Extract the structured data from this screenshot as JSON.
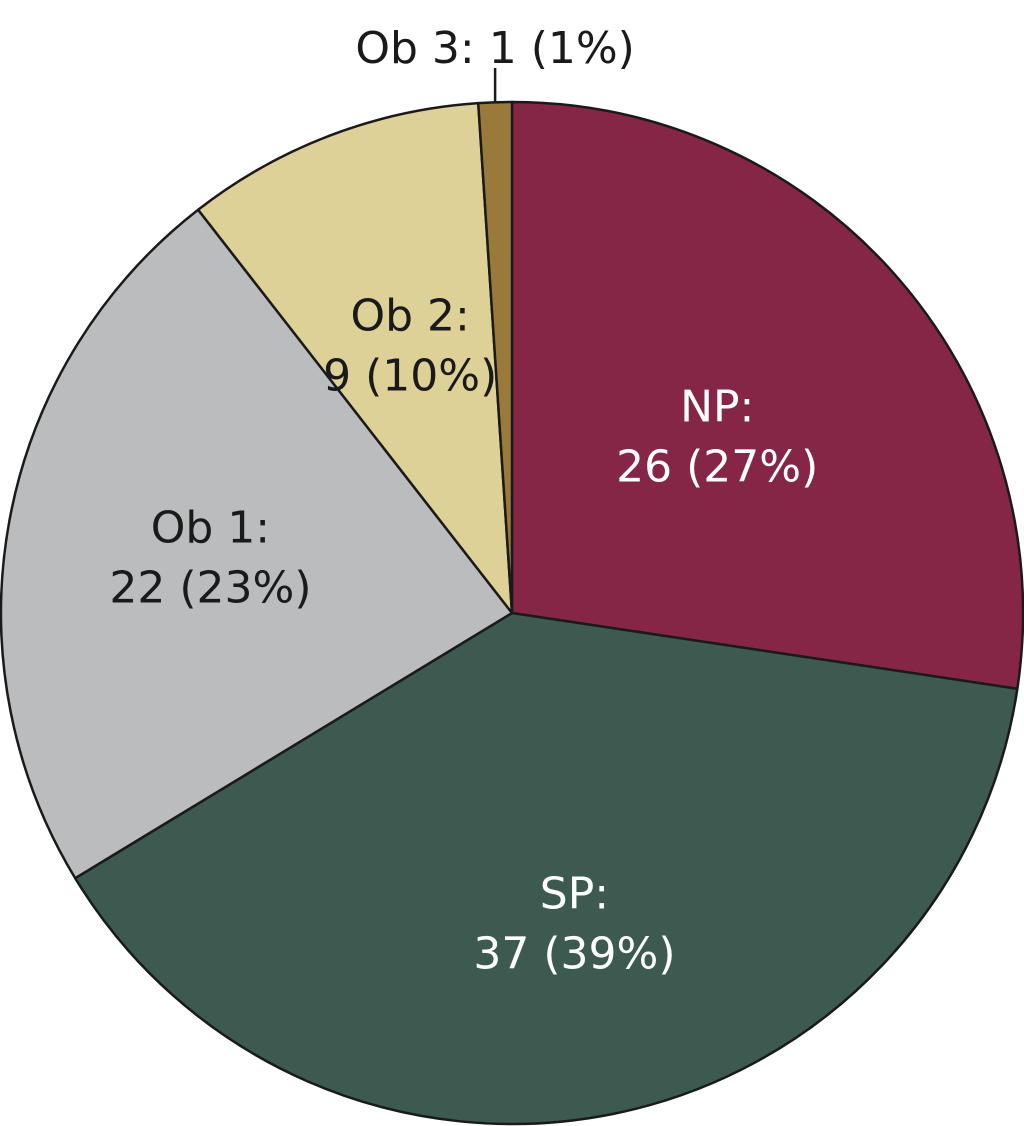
{
  "chart_data": {
    "type": "pie",
    "start": "12 o'clock",
    "direction": "clockwise",
    "slices": [
      {
        "name": "NP",
        "value": 26,
        "percent": 27,
        "color": "#862647",
        "text_color": "#ffffff",
        "label_lines": [
          "NP:",
          "26 (27%)"
        ],
        "label_style": "inside"
      },
      {
        "name": "SP",
        "value": 37,
        "percent": 39,
        "color": "#3c5a50",
        "text_color": "#ffffff",
        "label_lines": [
          "SP:",
          "37 (39%)"
        ],
        "label_style": "inside"
      },
      {
        "name": "Ob 1",
        "value": 22,
        "percent": 23,
        "color": "#bbbcbe",
        "text_color": "#1a1a1a",
        "label_lines": [
          "Ob 1:",
          "22 (23%)"
        ],
        "label_style": "inside"
      },
      {
        "name": "Ob 2",
        "value": 9,
        "percent": 10,
        "color": "#ded197",
        "text_color": "#1a1a1a",
        "label_lines": [
          "Ob 2:",
          "9 (10%)"
        ],
        "label_style": "inside"
      },
      {
        "name": "Ob 3",
        "value": 1,
        "percent": 1,
        "color": "#9a7a3b",
        "text_color": "#1a1a1a",
        "label_lines": [
          "Ob 3: 1 (1%)"
        ],
        "label_style": "outside-top"
      }
    ]
  }
}
